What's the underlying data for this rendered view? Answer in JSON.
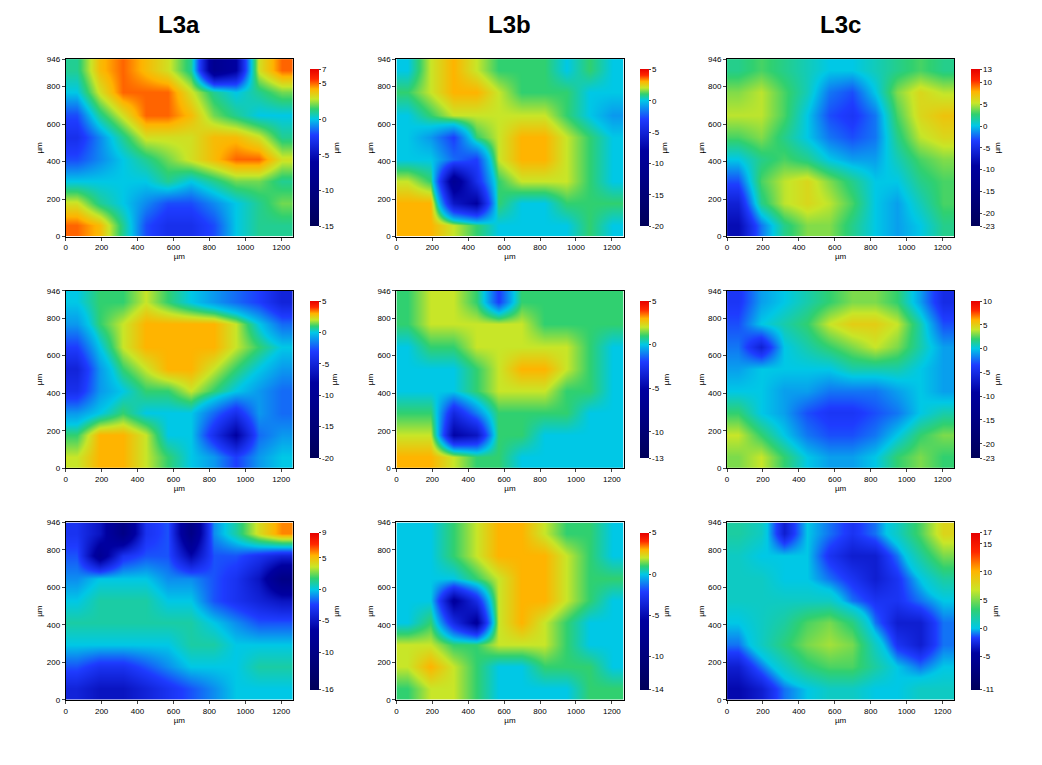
{
  "chart_data": [
    {
      "type": "heatmap",
      "title": "L3a",
      "x_label": "µm",
      "y_label": "µm",
      "colorbar_label": "µm",
      "x": [
        63,
        190,
        316,
        443,
        569,
        696,
        822,
        949,
        1075,
        1202
      ],
      "y": [
        59,
        177,
        296,
        414,
        532,
        650,
        769,
        887
      ],
      "xlim": [
        0,
        1265
      ],
      "ylim": [
        0,
        946
      ],
      "xticks": [
        0,
        200,
        400,
        600,
        800,
        1000,
        1200
      ],
      "yticks": [
        0,
        200,
        400,
        600,
        800,
        946
      ],
      "colorbar_range": [
        -15,
        7
      ],
      "colorbar_ticks": [
        -15,
        -10,
        -5,
        0,
        5,
        7
      ],
      "z": [
        [
          5,
          4,
          1,
          -2,
          -3,
          -3,
          -2,
          0,
          1,
          1
        ],
        [
          3,
          1,
          0,
          -1,
          -2,
          -2,
          -1,
          0,
          1,
          2
        ],
        [
          0,
          0,
          0,
          0,
          1,
          0,
          1,
          2,
          2,
          1
        ],
        [
          -2,
          -1,
          0,
          1,
          2,
          3,
          4,
          5,
          5,
          3
        ],
        [
          -3,
          -1,
          1,
          3,
          3,
          3,
          4,
          4,
          3,
          1
        ],
        [
          -2,
          1,
          3,
          5,
          5,
          4,
          2,
          1,
          0,
          0
        ],
        [
          0,
          3,
          5,
          5,
          5,
          3,
          1,
          0,
          1,
          2
        ],
        [
          1,
          4,
          5,
          4,
          3,
          1,
          -8,
          -6,
          3,
          5
        ]
      ]
    },
    {
      "type": "heatmap",
      "title": "L3b",
      "x_label": "µm",
      "y_label": "µm",
      "colorbar_label": "µm",
      "x": [
        63,
        190,
        316,
        443,
        569,
        696,
        822,
        949,
        1075,
        1202
      ],
      "y": [
        59,
        177,
        296,
        414,
        532,
        650,
        769,
        887
      ],
      "xlim": [
        0,
        1265
      ],
      "ylim": [
        0,
        946
      ],
      "xticks": [
        0,
        200,
        400,
        600,
        800,
        1000,
        1200
      ],
      "yticks": [
        0,
        200,
        400,
        600,
        800,
        946
      ],
      "colorbar_range": [
        -20,
        5
      ],
      "colorbar_ticks": [
        -20,
        -15,
        -10,
        -5,
        0,
        5
      ],
      "z": [
        [
          3,
          3,
          2,
          1,
          0,
          0,
          0,
          0,
          1,
          0
        ],
        [
          3,
          3,
          -6,
          -8,
          1,
          0,
          0,
          1,
          1,
          1
        ],
        [
          2,
          1,
          -10,
          -4,
          1,
          2,
          2,
          2,
          1,
          0
        ],
        [
          0,
          0,
          -2,
          -3,
          2,
          3,
          3,
          2,
          1,
          0
        ],
        [
          0,
          -1,
          -3,
          1,
          2,
          3,
          3,
          2,
          1,
          0
        ],
        [
          0,
          1,
          2,
          2,
          2,
          2,
          2,
          1,
          0,
          -1
        ],
        [
          1,
          2,
          3,
          3,
          2,
          1,
          1,
          1,
          0,
          0
        ],
        [
          0,
          2,
          3,
          2,
          1,
          1,
          1,
          0,
          1,
          0
        ]
      ]
    },
    {
      "type": "heatmap",
      "title": "L3c",
      "x_label": "µm",
      "y_label": "µm",
      "colorbar_label": "µm",
      "x": [
        63,
        190,
        316,
        443,
        569,
        696,
        822,
        949,
        1075,
        1202
      ],
      "y": [
        59,
        177,
        296,
        414,
        532,
        650,
        769,
        887
      ],
      "xlim": [
        0,
        1265
      ],
      "ylim": [
        0,
        946
      ],
      "xticks": [
        0,
        200,
        400,
        600,
        800,
        1000,
        1200
      ],
      "yticks": [
        0,
        200,
        400,
        600,
        800,
        946
      ],
      "colorbar_range": [
        -23,
        13
      ],
      "colorbar_ticks": [
        -23,
        -20,
        -15,
        -10,
        -5,
        0,
        5,
        10,
        13
      ],
      "z": [
        [
          -8,
          -2,
          2,
          4,
          4,
          2,
          0,
          -1,
          0,
          2
        ],
        [
          -6,
          2,
          5,
          6,
          5,
          3,
          0,
          -1,
          1,
          3
        ],
        [
          -3,
          3,
          5,
          6,
          4,
          2,
          0,
          0,
          2,
          3
        ],
        [
          0,
          2,
          3,
          2,
          0,
          -1,
          -1,
          1,
          3,
          4
        ],
        [
          3,
          4,
          2,
          0,
          -2,
          -3,
          -2,
          2,
          5,
          6
        ],
        [
          5,
          5,
          3,
          0,
          -3,
          -4,
          -2,
          3,
          6,
          7
        ],
        [
          4,
          5,
          3,
          1,
          -2,
          -3,
          0,
          4,
          6,
          5
        ],
        [
          2,
          3,
          2,
          1,
          0,
          0,
          1,
          2,
          3,
          2
        ]
      ]
    },
    {
      "type": "heatmap",
      "x_label": "µm",
      "y_label": "µm",
      "colorbar_label": "µm",
      "x": [
        63,
        190,
        316,
        443,
        569,
        696,
        822,
        949,
        1075,
        1202
      ],
      "y": [
        59,
        177,
        296,
        414,
        532,
        650,
        769,
        887
      ],
      "xlim": [
        0,
        1265
      ],
      "ylim": [
        0,
        946
      ],
      "xticks": [
        0,
        200,
        400,
        600,
        800,
        1000,
        1200
      ],
      "yticks": [
        0,
        200,
        400,
        600,
        800,
        946
      ],
      "colorbar_range": [
        -20,
        5
      ],
      "colorbar_ticks": [
        -20,
        -15,
        -10,
        -5,
        0,
        5
      ],
      "z": [
        [
          2,
          3,
          3,
          2,
          1,
          0,
          -1,
          -3,
          -1,
          0
        ],
        [
          1,
          3,
          3,
          2,
          0,
          0,
          -4,
          -8,
          -2,
          -1
        ],
        [
          -1,
          0,
          1,
          0,
          0,
          0,
          -2,
          -4,
          -1,
          -2
        ],
        [
          -4,
          -1,
          0,
          1,
          1,
          2,
          1,
          0,
          -1,
          -2
        ],
        [
          -5,
          -1,
          1,
          2,
          3,
          3,
          2,
          1,
          0,
          -1
        ],
        [
          -3,
          0,
          2,
          3,
          3,
          3,
          3,
          2,
          1,
          0
        ],
        [
          -1,
          1,
          2,
          3,
          3,
          3,
          3,
          2,
          0,
          -2
        ],
        [
          0,
          1,
          1,
          2,
          1,
          0,
          -1,
          -2,
          -3,
          -5
        ]
      ]
    },
    {
      "type": "heatmap",
      "x_label": "µm",
      "y_label": "µm",
      "colorbar_label": "µm",
      "x": [
        63,
        190,
        316,
        443,
        569,
        696,
        822,
        949,
        1075,
        1202
      ],
      "y": [
        59,
        177,
        296,
        414,
        532,
        650,
        769,
        887
      ],
      "xlim": [
        0,
        1265
      ],
      "ylim": [
        0,
        946
      ],
      "xticks": [
        0,
        200,
        400,
        600,
        800,
        1000,
        1200
      ],
      "yticks": [
        0,
        200,
        400,
        600,
        800,
        946
      ],
      "colorbar_range": [
        -13,
        5
      ],
      "colorbar_ticks": [
        -13,
        -10,
        -5,
        0,
        5
      ],
      "z": [
        [
          3,
          3,
          2,
          1,
          1,
          0,
          0,
          0,
          0,
          0
        ],
        [
          2,
          2,
          -5,
          -4,
          1,
          1,
          0,
          0,
          0,
          0
        ],
        [
          1,
          1,
          -3,
          -1,
          1,
          1,
          1,
          1,
          0,
          0
        ],
        [
          0,
          0,
          0,
          1,
          2,
          2,
          2,
          1,
          1,
          0
        ],
        [
          0,
          0,
          0,
          1,
          2,
          3,
          3,
          2,
          1,
          0
        ],
        [
          0,
          1,
          1,
          2,
          2,
          2,
          2,
          2,
          1,
          0
        ],
        [
          1,
          2,
          2,
          2,
          2,
          2,
          1,
          1,
          1,
          1
        ],
        [
          1,
          2,
          2,
          1,
          -2,
          1,
          1,
          1,
          1,
          1
        ]
      ]
    },
    {
      "type": "heatmap",
      "x_label": "µm",
      "y_label": "µm",
      "colorbar_label": "µm",
      "x": [
        63,
        190,
        316,
        443,
        569,
        696,
        822,
        949,
        1075,
        1202
      ],
      "y": [
        59,
        177,
        296,
        414,
        532,
        650,
        769,
        887
      ],
      "xlim": [
        0,
        1265
      ],
      "ylim": [
        0,
        946
      ],
      "xticks": [
        0,
        200,
        400,
        600,
        800,
        1000,
        1200
      ],
      "yticks": [
        0,
        200,
        400,
        600,
        800,
        946
      ],
      "colorbar_range": [
        -23,
        10
      ],
      "colorbar_ticks": [
        -23,
        -20,
        -15,
        -10,
        -5,
        0,
        5,
        10
      ],
      "z": [
        [
          3,
          4,
          2,
          0,
          -1,
          -1,
          0,
          2,
          3,
          2
        ],
        [
          4,
          2,
          0,
          -2,
          -3,
          -3,
          -2,
          0,
          2,
          3
        ],
        [
          2,
          0,
          -1,
          -3,
          -4,
          -4,
          -3,
          -2,
          0,
          1
        ],
        [
          0,
          0,
          -1,
          -1,
          -2,
          -2,
          -2,
          -1,
          0,
          -1
        ],
        [
          -1,
          0,
          0,
          0,
          0,
          1,
          1,
          1,
          0,
          -1
        ],
        [
          -2,
          -6,
          0,
          1,
          2,
          3,
          4,
          3,
          1,
          -1
        ],
        [
          -3,
          0,
          1,
          2,
          4,
          5,
          5,
          4,
          1,
          -3
        ],
        [
          -4,
          -1,
          0,
          1,
          2,
          3,
          3,
          2,
          -1,
          -5
        ]
      ]
    },
    {
      "type": "heatmap",
      "x_label": "µm",
      "y_label": "µm",
      "colorbar_label": "µm",
      "x": [
        63,
        190,
        316,
        443,
        569,
        696,
        822,
        949,
        1075,
        1202
      ],
      "y": [
        59,
        177,
        296,
        414,
        532,
        650,
        769,
        887
      ],
      "xlim": [
        0,
        1265
      ],
      "ylim": [
        0,
        946
      ],
      "xticks": [
        0,
        200,
        400,
        600,
        800,
        1000,
        1200
      ],
      "yticks": [
        0,
        200,
        400,
        600,
        800,
        946
      ],
      "colorbar_range": [
        -16,
        9
      ],
      "colorbar_ticks": [
        -16,
        -10,
        -5,
        0,
        5,
        9
      ],
      "z": [
        [
          -4,
          -5,
          -5,
          -4,
          -3,
          -2,
          -1,
          0,
          0,
          0
        ],
        [
          -2,
          -3,
          -3,
          -2,
          -1,
          0,
          0,
          0,
          1,
          1
        ],
        [
          0,
          0,
          0,
          0,
          0,
          1,
          1,
          0,
          0,
          0
        ],
        [
          1,
          1,
          1,
          1,
          1,
          1,
          0,
          -1,
          -2,
          -2
        ],
        [
          0,
          1,
          1,
          1,
          0,
          0,
          -2,
          -3,
          -4,
          -5
        ],
        [
          -1,
          0,
          0,
          0,
          -1,
          -1,
          -2,
          -3,
          -5,
          -10
        ],
        [
          -2,
          -8,
          -3,
          -2,
          -2,
          -6,
          -2,
          -2,
          -3,
          -4
        ],
        [
          -3,
          -5,
          -10,
          -3,
          -2,
          -10,
          -1,
          1,
          4,
          6
        ]
      ]
    },
    {
      "type": "heatmap",
      "x_label": "µm",
      "y_label": "µm",
      "colorbar_label": "µm",
      "x": [
        63,
        190,
        316,
        443,
        569,
        696,
        822,
        949,
        1075,
        1202
      ],
      "y": [
        59,
        177,
        296,
        414,
        532,
        650,
        769,
        887
      ],
      "xlim": [
        0,
        1265
      ],
      "ylim": [
        0,
        946
      ],
      "xticks": [
        0,
        200,
        400,
        600,
        800,
        1000,
        1200
      ],
      "yticks": [
        0,
        200,
        400,
        600,
        800,
        946
      ],
      "colorbar_range": [
        -14,
        5
      ],
      "colorbar_ticks": [
        -14,
        -10,
        -5,
        0,
        5
      ],
      "z": [
        [
          1,
          2,
          2,
          1,
          0,
          0,
          0,
          0,
          1,
          1
        ],
        [
          2,
          3,
          2,
          1,
          0,
          0,
          1,
          1,
          1,
          0
        ],
        [
          2,
          2,
          1,
          1,
          2,
          2,
          2,
          1,
          0,
          0
        ],
        [
          0,
          1,
          -3,
          -6,
          2,
          3,
          2,
          1,
          0,
          0
        ],
        [
          0,
          0,
          -6,
          -3,
          2,
          3,
          3,
          2,
          1,
          0
        ],
        [
          0,
          0,
          0,
          1,
          2,
          3,
          3,
          2,
          1,
          1
        ],
        [
          0,
          0,
          1,
          2,
          3,
          3,
          3,
          2,
          1,
          0
        ],
        [
          0,
          0,
          1,
          2,
          3,
          3,
          2,
          1,
          1,
          0
        ]
      ]
    },
    {
      "type": "heatmap",
      "x_label": "µm",
      "y_label": "µm",
      "colorbar_label": "µm",
      "x": [
        63,
        190,
        316,
        443,
        569,
        696,
        822,
        949,
        1075,
        1202
      ],
      "y": [
        59,
        177,
        296,
        414,
        532,
        650,
        769,
        887
      ],
      "xlim": [
        0,
        1265
      ],
      "ylim": [
        0,
        946
      ],
      "xticks": [
        0,
        200,
        400,
        600,
        800,
        1000,
        1200
      ],
      "yticks": [
        0,
        200,
        400,
        600,
        800,
        946
      ],
      "colorbar_range": [
        -11,
        17
      ],
      "colorbar_ticks": [
        -11,
        -5,
        0,
        5,
        10,
        15,
        17
      ],
      "z": [
        [
          -4,
          -3,
          -1,
          0,
          1,
          1,
          0,
          0,
          1,
          1
        ],
        [
          -3,
          -1,
          1,
          3,
          4,
          4,
          2,
          0,
          -1,
          0
        ],
        [
          -1,
          1,
          3,
          5,
          6,
          5,
          1,
          -2,
          -3,
          -1
        ],
        [
          0,
          1,
          2,
          4,
          5,
          3,
          -1,
          -3,
          -3,
          -1
        ],
        [
          1,
          1,
          1,
          1,
          1,
          -1,
          -2,
          -2,
          -1,
          0
        ],
        [
          1,
          1,
          0,
          0,
          -1,
          -2,
          -3,
          -2,
          0,
          2
        ],
        [
          1,
          0,
          0,
          0,
          -2,
          -3,
          -3,
          -1,
          2,
          5
        ],
        [
          2,
          1,
          -3,
          0,
          -1,
          -2,
          -1,
          1,
          4,
          8
        ]
      ]
    }
  ]
}
